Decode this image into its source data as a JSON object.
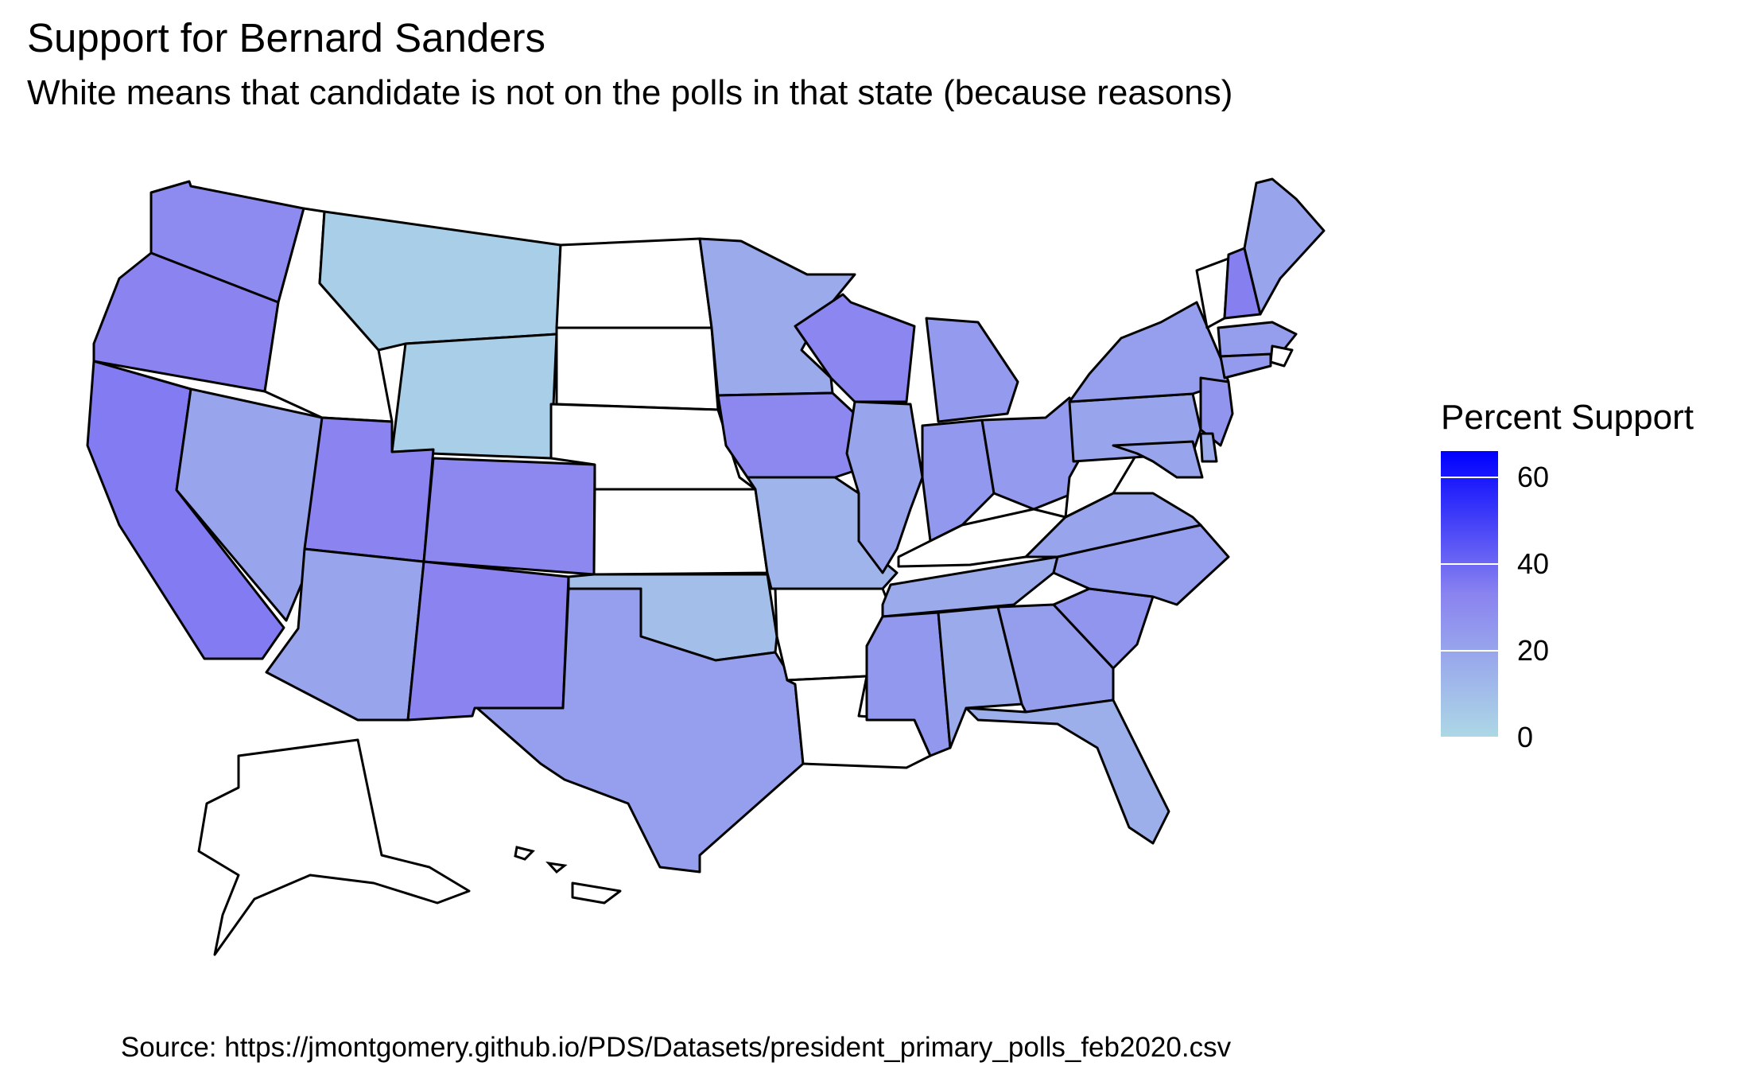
{
  "title": "Support for Bernard Sanders",
  "subtitle": "White means that candidate is not on the polls in that state (because reasons)",
  "caption": "Source: https://jmontgomery.github.io/PDS/Datasets/president_primary_polls_feb2020.csv",
  "legend": {
    "title": "Percent Support",
    "ticks": [
      "0",
      "20",
      "40",
      "60"
    ],
    "scale_min": 0,
    "scale_max": 66,
    "color_low": "#add8e6",
    "color_mid": "#8a83f0",
    "color_high": "#0000ff",
    "missing_color": "#ffffff"
  },
  "states": [
    {
      "name": "Washington",
      "support": 30
    },
    {
      "name": "Oregon",
      "support": 33
    },
    {
      "name": "California",
      "support": 35
    },
    {
      "name": "Nevada",
      "support": 20
    },
    {
      "name": "Idaho",
      "support": null
    },
    {
      "name": "Montana",
      "support": 4
    },
    {
      "name": "Wyoming",
      "support": 4
    },
    {
      "name": "Utah",
      "support": 33
    },
    {
      "name": "Arizona",
      "support": 20
    },
    {
      "name": "Colorado",
      "support": 31
    },
    {
      "name": "New Mexico",
      "support": 33
    },
    {
      "name": "North Dakota",
      "support": null
    },
    {
      "name": "South Dakota",
      "support": null
    },
    {
      "name": "Nebraska",
      "support": null
    },
    {
      "name": "Kansas",
      "support": null
    },
    {
      "name": "Oklahoma",
      "support": 10
    },
    {
      "name": "Texas",
      "support": 22
    },
    {
      "name": "Minnesota",
      "support": 18
    },
    {
      "name": "Iowa",
      "support": 31
    },
    {
      "name": "Missouri",
      "support": 14
    },
    {
      "name": "Arkansas",
      "support": null
    },
    {
      "name": "Louisiana",
      "support": null
    },
    {
      "name": "Wisconsin",
      "support": 32
    },
    {
      "name": "Illinois",
      "support": 20
    },
    {
      "name": "Michigan",
      "support": 24
    },
    {
      "name": "Indiana",
      "support": 25
    },
    {
      "name": "Ohio",
      "support": 24
    },
    {
      "name": "Kentucky",
      "support": null
    },
    {
      "name": "Tennessee",
      "support": 18
    },
    {
      "name": "Mississippi",
      "support": 25
    },
    {
      "name": "Alabama",
      "support": 18
    },
    {
      "name": "Georgia",
      "support": 23
    },
    {
      "name": "Florida",
      "support": 16
    },
    {
      "name": "South Carolina",
      "support": 26
    },
    {
      "name": "North Carolina",
      "support": 22
    },
    {
      "name": "Virginia",
      "support": 20
    },
    {
      "name": "West Virginia",
      "support": null
    },
    {
      "name": "Pennsylvania",
      "support": 20
    },
    {
      "name": "New York",
      "support": 22
    },
    {
      "name": "Vermont",
      "support": null
    },
    {
      "name": "New Hampshire",
      "support": 34
    },
    {
      "name": "Maine",
      "support": 20
    },
    {
      "name": "Massachusetts",
      "support": 23
    },
    {
      "name": "Rhode Island",
      "support": null
    },
    {
      "name": "Connecticut",
      "support": 24
    },
    {
      "name": "New Jersey",
      "support": 26
    },
    {
      "name": "Delaware",
      "support": 18
    },
    {
      "name": "Maryland",
      "support": 20
    },
    {
      "name": "Alaska",
      "support": null
    },
    {
      "name": "Hawaii",
      "support": null
    }
  ]
}
